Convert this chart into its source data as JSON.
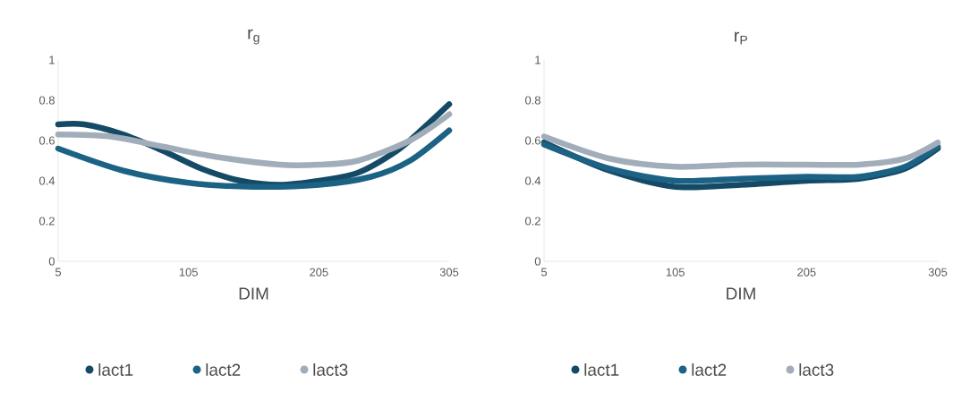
{
  "chart_data": [
    {
      "type": "line",
      "title": "r$_{g}$",
      "xlabel": "DIM",
      "xlim": [
        5,
        305
      ],
      "xticks": [
        5,
        105,
        205,
        305
      ],
      "ylim": [
        0,
        1
      ],
      "yticks": [
        0,
        0.2,
        0.4,
        0.6,
        0.8,
        1
      ],
      "legend": "bottom",
      "grid": false,
      "marker": "none",
      "line_style": "solid",
      "series": [
        {
          "name": "lact1",
          "color": "#154a66",
          "x": [
            5,
            25,
            55,
            85,
            115,
            145,
            175,
            205,
            235,
            265,
            285,
            305
          ],
          "values": [
            0.68,
            0.68,
            0.63,
            0.55,
            0.46,
            0.4,
            0.38,
            0.4,
            0.44,
            0.55,
            0.66,
            0.78
          ]
        },
        {
          "name": "lact2",
          "color": "#1b6284",
          "x": [
            5,
            55,
            105,
            155,
            205,
            245,
            275,
            305
          ],
          "values": [
            0.56,
            0.45,
            0.39,
            0.37,
            0.38,
            0.42,
            0.5,
            0.65
          ]
        },
        {
          "name": "lact3",
          "color": "#a1adb9",
          "x": [
            5,
            45,
            85,
            125,
            175,
            205,
            235,
            275,
            305
          ],
          "values": [
            0.63,
            0.62,
            0.57,
            0.52,
            0.48,
            0.48,
            0.5,
            0.6,
            0.73
          ]
        }
      ]
    },
    {
      "type": "line",
      "title": "r$_{P}$",
      "xlabel": "DIM",
      "xlim": [
        5,
        305
      ],
      "xticks": [
        5,
        105,
        205,
        305
      ],
      "ylim": [
        0,
        1
      ],
      "yticks": [
        0,
        0.2,
        0.4,
        0.6,
        0.8,
        1
      ],
      "legend": "bottom",
      "grid": false,
      "marker": "none",
      "line_style": "solid",
      "series": [
        {
          "name": "lact1",
          "color": "#154a66",
          "x": [
            5,
            55,
            105,
            155,
            205,
            245,
            280,
            305
          ],
          "values": [
            0.59,
            0.45,
            0.37,
            0.38,
            0.4,
            0.41,
            0.46,
            0.56
          ]
        },
        {
          "name": "lact2",
          "color": "#1b6284",
          "x": [
            5,
            55,
            105,
            155,
            205,
            245,
            280,
            305
          ],
          "values": [
            0.58,
            0.46,
            0.4,
            0.41,
            0.42,
            0.42,
            0.47,
            0.57
          ]
        },
        {
          "name": "lact3",
          "color": "#a1adb9",
          "x": [
            5,
            55,
            105,
            155,
            205,
            245,
            280,
            305
          ],
          "values": [
            0.62,
            0.51,
            0.47,
            0.48,
            0.48,
            0.48,
            0.51,
            0.59
          ]
        }
      ]
    }
  ]
}
